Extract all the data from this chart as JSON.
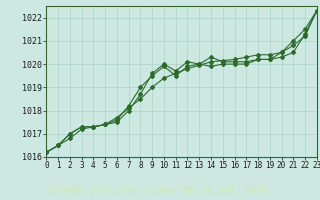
{
  "title": "Graphe pression niveau de la mer (hPa)",
  "bg_color": "#cce8e0",
  "grid_color": "#aad4c8",
  "line_color": "#2d6a2d",
  "border_color": "#2d6a2d",
  "label_bg": "#3a7a3a",
  "label_fg": "#cce8c0",
  "x_values": [
    0,
    1,
    2,
    3,
    4,
    5,
    6,
    7,
    8,
    9,
    10,
    11,
    12,
    13,
    14,
    15,
    16,
    17,
    18,
    19,
    20,
    21,
    22,
    23
  ],
  "line1": [
    1016.2,
    1016.5,
    1017.0,
    1017.3,
    1017.3,
    1017.4,
    1017.6,
    1018.2,
    1019.0,
    1019.5,
    1019.9,
    1019.5,
    1019.9,
    1020.0,
    1020.3,
    1020.1,
    1020.1,
    1020.1,
    1020.2,
    1020.2,
    1020.5,
    1021.0,
    1021.5,
    1022.3
  ],
  "line2": [
    1016.2,
    1016.5,
    1017.0,
    1017.3,
    1017.3,
    1017.4,
    1017.5,
    1018.0,
    1018.7,
    1019.6,
    1020.0,
    1019.7,
    1020.1,
    1020.0,
    1019.9,
    1020.0,
    1020.0,
    1020.0,
    1020.2,
    1020.2,
    1020.3,
    1020.5,
    1021.3,
    1022.3
  ],
  "line3": [
    1016.2,
    1016.5,
    1016.8,
    1017.2,
    1017.3,
    1017.4,
    1017.7,
    1018.1,
    1018.5,
    1019.0,
    1019.4,
    1019.6,
    1019.8,
    1019.95,
    1020.1,
    1020.15,
    1020.2,
    1020.3,
    1020.4,
    1020.4,
    1020.5,
    1020.8,
    1021.2,
    1022.3
  ],
  "ylim": [
    1016.0,
    1022.5
  ],
  "xlim": [
    0,
    23
  ],
  "yticks": [
    1016,
    1017,
    1018,
    1019,
    1020,
    1021,
    1022
  ],
  "xticks": [
    0,
    1,
    2,
    3,
    4,
    5,
    6,
    7,
    8,
    9,
    10,
    11,
    12,
    13,
    14,
    15,
    16,
    17,
    18,
    19,
    20,
    21,
    22,
    23
  ],
  "figsize": [
    3.2,
    2.0
  ],
  "dpi": 100
}
